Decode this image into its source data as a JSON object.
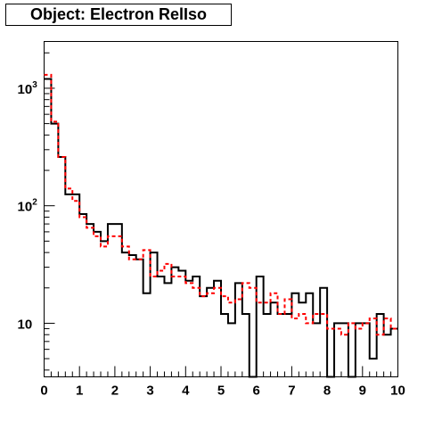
{
  "chart_data": {
    "type": "histogram",
    "title": "Object: Electron RelIso",
    "xlabel": "",
    "ylabel": "",
    "xlim": [
      0,
      10
    ],
    "ylim": [
      3.5,
      2500
    ],
    "ylog": true,
    "bin_width": 0.2,
    "x_ticks": [
      "0",
      "1",
      "2",
      "3",
      "4",
      "5",
      "6",
      "7",
      "8",
      "9",
      "10"
    ],
    "y_ticks": [
      {
        "value": 10,
        "base": "10",
        "exp": ""
      },
      {
        "value": 100,
        "base": "10",
        "exp": "2"
      },
      {
        "value": 1000,
        "base": "10",
        "exp": "3"
      }
    ],
    "series": [
      {
        "style": "solid",
        "color": "#000000",
        "values": [
          1200,
          500,
          260,
          125,
          125,
          85,
          70,
          60,
          50,
          70,
          70,
          40,
          38,
          35,
          18,
          40,
          25,
          22,
          30,
          28,
          23,
          25,
          17,
          20,
          23,
          12,
          10,
          22,
          12,
          3,
          25,
          12,
          15,
          12,
          12,
          18,
          15,
          18,
          10,
          20,
          3,
          10,
          10,
          3,
          10,
          10,
          5,
          12,
          8,
          9
        ]
      },
      {
        "style": "dashed",
        "color": "#ff0000",
        "values": [
          1300,
          520,
          260,
          140,
          110,
          80,
          65,
          55,
          45,
          55,
          55,
          45,
          35,
          35,
          42,
          25,
          28,
          32,
          25,
          25,
          22,
          20,
          17,
          18,
          20,
          17,
          15,
          16,
          22,
          20,
          15,
          15,
          18,
          12,
          16,
          11,
          12,
          10,
          12,
          12,
          9,
          9,
          8,
          10,
          9,
          10,
          11,
          8,
          11,
          9
        ]
      }
    ]
  }
}
